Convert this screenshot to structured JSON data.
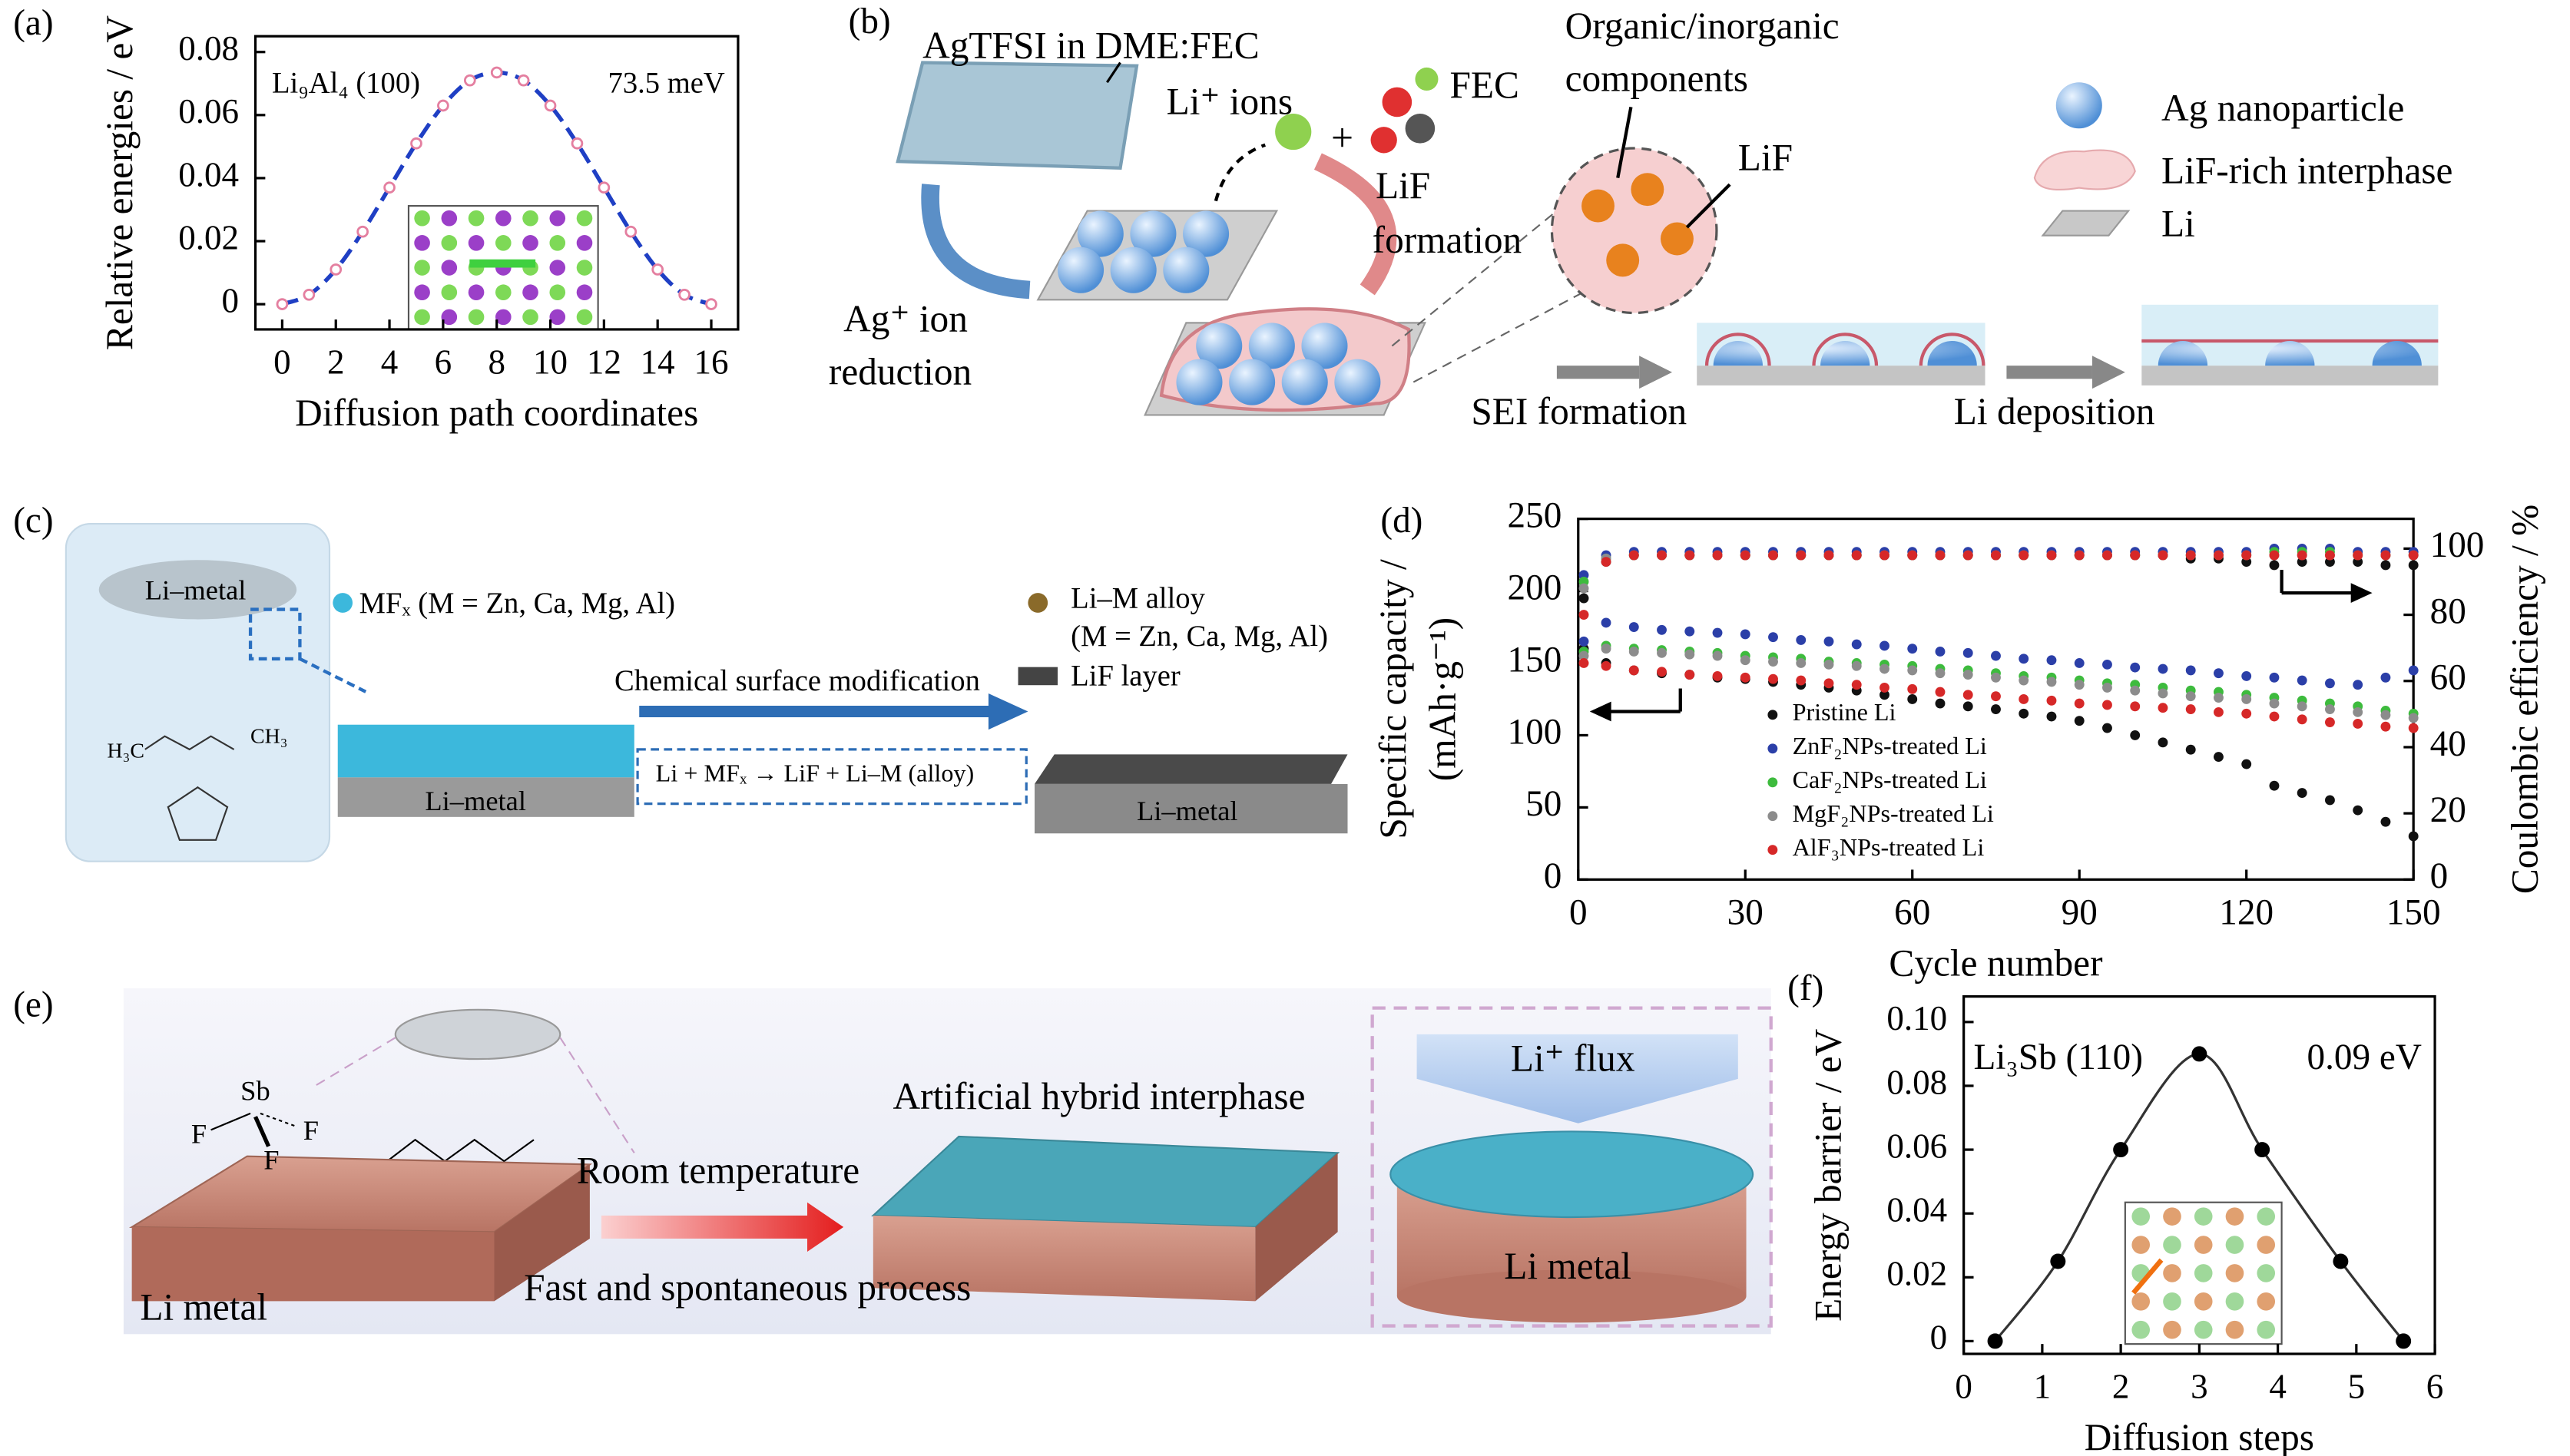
{
  "chart_data": [
    {
      "type": "line",
      "panel_label": "(a)",
      "xlabel": "Diffusion path coordinates",
      "ylabel": [
        "Relative energies / eV"
      ],
      "annotations": [
        "Li₉Al₄ (100)",
        "73.5 meV"
      ],
      "smooth": true,
      "x": [
        0,
        1,
        2,
        3,
        4,
        5,
        6,
        7,
        8,
        9,
        10,
        11,
        12,
        13,
        14,
        15,
        16
      ],
      "series": [
        {
          "color": "#1f3fc4",
          "line_style": "dashed",
          "marker_color": "#e47fa0",
          "hollow_markers": true,
          "values": [
            0,
            0.003,
            0.011,
            0.023,
            0.037,
            0.051,
            0.063,
            0.071,
            0.0735,
            0.071,
            0.063,
            0.051,
            0.037,
            0.023,
            0.011,
            0.003,
            0
          ]
        }
      ],
      "xlim": [
        -1,
        17
      ],
      "xticks": [
        0,
        2,
        4,
        6,
        8,
        10,
        12,
        14,
        16
      ],
      "ylim": [
        -0.008,
        0.085
      ],
      "yticks": [
        0,
        0.02,
        0.04,
        0.06,
        0.08
      ]
    },
    {
      "type": "scatter",
      "panel_label": "(d)",
      "xlabel": "Cycle number",
      "ylabel": [
        "Specific capacity /",
        "(mAh·g⁻¹)"
      ],
      "y2label": "Coulombic efficiency / %",
      "legend": "lower left",
      "x": [
        1,
        5,
        10,
        15,
        20,
        25,
        30,
        35,
        40,
        45,
        50,
        55,
        60,
        65,
        70,
        75,
        80,
        85,
        90,
        95,
        100,
        105,
        110,
        115,
        120,
        125,
        130,
        135,
        140,
        145,
        150
      ],
      "series": [
        {
          "name": "Pristine Li",
          "color": "#111111",
          "values": [
            160,
            150,
            145,
            143,
            142,
            140,
            139,
            137,
            135,
            133,
            131,
            128,
            125,
            122,
            120,
            118,
            115,
            113,
            110,
            105,
            100,
            95,
            90,
            85,
            80,
            65,
            60,
            55,
            48,
            40,
            30
          ],
          "y2_values": [
            85,
            96,
            98,
            98,
            98,
            98,
            98,
            98,
            98,
            98,
            98,
            98,
            98,
            98,
            98,
            98,
            98,
            98,
            98,
            98,
            98,
            98,
            97,
            97,
            96,
            95,
            96,
            96,
            96,
            95,
            95
          ]
        },
        {
          "name": "ZnF₂NPs-treated Li",
          "color": "#2b3fa8",
          "values": [
            165,
            178,
            175,
            173,
            172,
            171,
            170,
            168,
            166,
            165,
            163,
            162,
            160,
            158,
            157,
            155,
            153,
            152,
            150,
            149,
            147,
            146,
            145,
            143,
            141,
            140,
            138,
            136,
            135,
            140,
            145
          ],
          "y2_values": [
            92,
            98,
            99,
            99,
            99,
            99,
            99,
            99,
            99,
            99,
            99,
            99,
            99,
            99,
            99,
            99,
            99,
            99,
            99,
            99,
            99,
            99,
            99,
            99,
            99,
            100,
            100,
            100,
            99,
            99,
            99
          ]
        },
        {
          "name": "CaF₂NPs-treated Li",
          "color": "#3dbb3d",
          "values": [
            158,
            162,
            160,
            159,
            158,
            157,
            155,
            154,
            153,
            151,
            150,
            149,
            148,
            146,
            145,
            143,
            141,
            140,
            138,
            136,
            135,
            133,
            131,
            130,
            128,
            126,
            124,
            122,
            120,
            117,
            115
          ],
          "y2_values": [
            90,
            97,
            98,
            98,
            98,
            98,
            98,
            98,
            98,
            98,
            98,
            98,
            98,
            98,
            98,
            98,
            98,
            98,
            98,
            98,
            98,
            98,
            98,
            98,
            98,
            99,
            99,
            99,
            98,
            98,
            98
          ]
        },
        {
          "name": "MgF₂NPs-treated Li",
          "color": "#8c8c8c",
          "values": [
            155,
            160,
            158,
            157,
            156,
            155,
            152,
            151,
            150,
            149,
            148,
            146,
            145,
            143,
            142,
            140,
            138,
            137,
            135,
            133,
            131,
            129,
            127,
            126,
            125,
            122,
            120,
            118,
            116,
            114,
            112
          ],
          "y2_values": [
            88,
            97,
            98,
            98,
            98,
            98,
            98,
            98,
            98,
            98,
            98,
            98,
            98,
            98,
            98,
            98,
            98,
            98,
            98,
            98,
            98,
            98,
            98,
            98,
            98,
            98,
            98,
            98,
            98,
            98,
            98
          ]
        },
        {
          "name": "AlF₃NPs-treated Li",
          "color": "#d62828",
          "values": [
            150,
            148,
            145,
            144,
            142,
            141,
            140,
            139,
            138,
            136,
            135,
            133,
            132,
            130,
            128,
            127,
            125,
            124,
            122,
            121,
            120,
            119,
            118,
            116,
            115,
            113,
            111,
            109,
            108,
            106,
            105
          ],
          "y2_values": [
            80,
            96,
            98,
            98,
            98,
            98,
            98,
            98,
            98,
            98,
            98,
            98,
            98,
            98,
            98,
            98,
            98,
            98,
            98,
            98,
            98,
            98,
            98,
            98,
            98,
            98,
            98,
            98,
            98,
            98,
            98
          ]
        }
      ],
      "xlim": [
        0,
        150
      ],
      "xticks": [
        0,
        30,
        60,
        90,
        120,
        150
      ],
      "ylim": [
        0,
        250
      ],
      "yticks": [
        0,
        50,
        100,
        150,
        200,
        250
      ],
      "y2lim": [
        0,
        109
      ],
      "y2ticks": [
        0,
        20,
        40,
        60,
        80,
        100
      ]
    },
    {
      "type": "line",
      "panel_label": "(f)",
      "xlabel": "Diffusion steps",
      "ylabel": [
        "Energy barrier / eV"
      ],
      "annotations": [
        "Li₃Sb (110)",
        "0.09 eV"
      ],
      "smooth": true,
      "x": [
        0.4,
        1.2,
        2.0,
        3.0,
        3.8,
        4.8,
        5.6
      ],
      "series": [
        {
          "color": "#333333",
          "line_style": "solid",
          "marker_color": "#000000",
          "hollow_markers": false,
          "values": [
            0,
            0.025,
            0.06,
            0.09,
            0.06,
            0.025,
            0
          ]
        }
      ],
      "xlim": [
        0,
        6
      ],
      "xticks": [
        0,
        1,
        2,
        3,
        4,
        5,
        6
      ],
      "ylim": [
        -0.004,
        0.108
      ],
      "yticks": [
        0,
        0.02,
        0.04,
        0.06,
        0.08,
        {
          "value": 0.1,
          "label": "0.10"
        }
      ]
    }
  ],
  "diagrams": [
    {
      "panel_label": "(b)",
      "labels": [
        "AgTFSI in DME:FEC",
        "Li⁺ ions",
        "+",
        "FEC",
        "LiF",
        "formation",
        "Organic/inorganic",
        "components",
        "LiF",
        "Ag⁺ ion",
        "reduction",
        "Ag nanoparticle",
        "LiF-rich interphase",
        "Li",
        "SEI formation",
        "Li deposition"
      ]
    },
    {
      "panel_label": "(c)",
      "labels": [
        "Li–metal",
        "MFₓ (M = Zn, Ca, Mg, Al)",
        "Chemical surface modification",
        "Li + MFₓ → LiF + Li–M (alloy)",
        "Li–M alloy",
        "(M = Zn, Ca, Mg, Al)",
        "LiF layer",
        "Li–metal",
        "Li–metal",
        "H₃C",
        "CH₃"
      ]
    },
    {
      "panel_label": "(e)",
      "labels": [
        "Sb",
        "F",
        "F",
        "F",
        "Room temperature",
        "Artificial hybrid interphase",
        "Fast and spontaneous process",
        "Li metal",
        "Li⁺ flux",
        "Li metal"
      ]
    }
  ]
}
